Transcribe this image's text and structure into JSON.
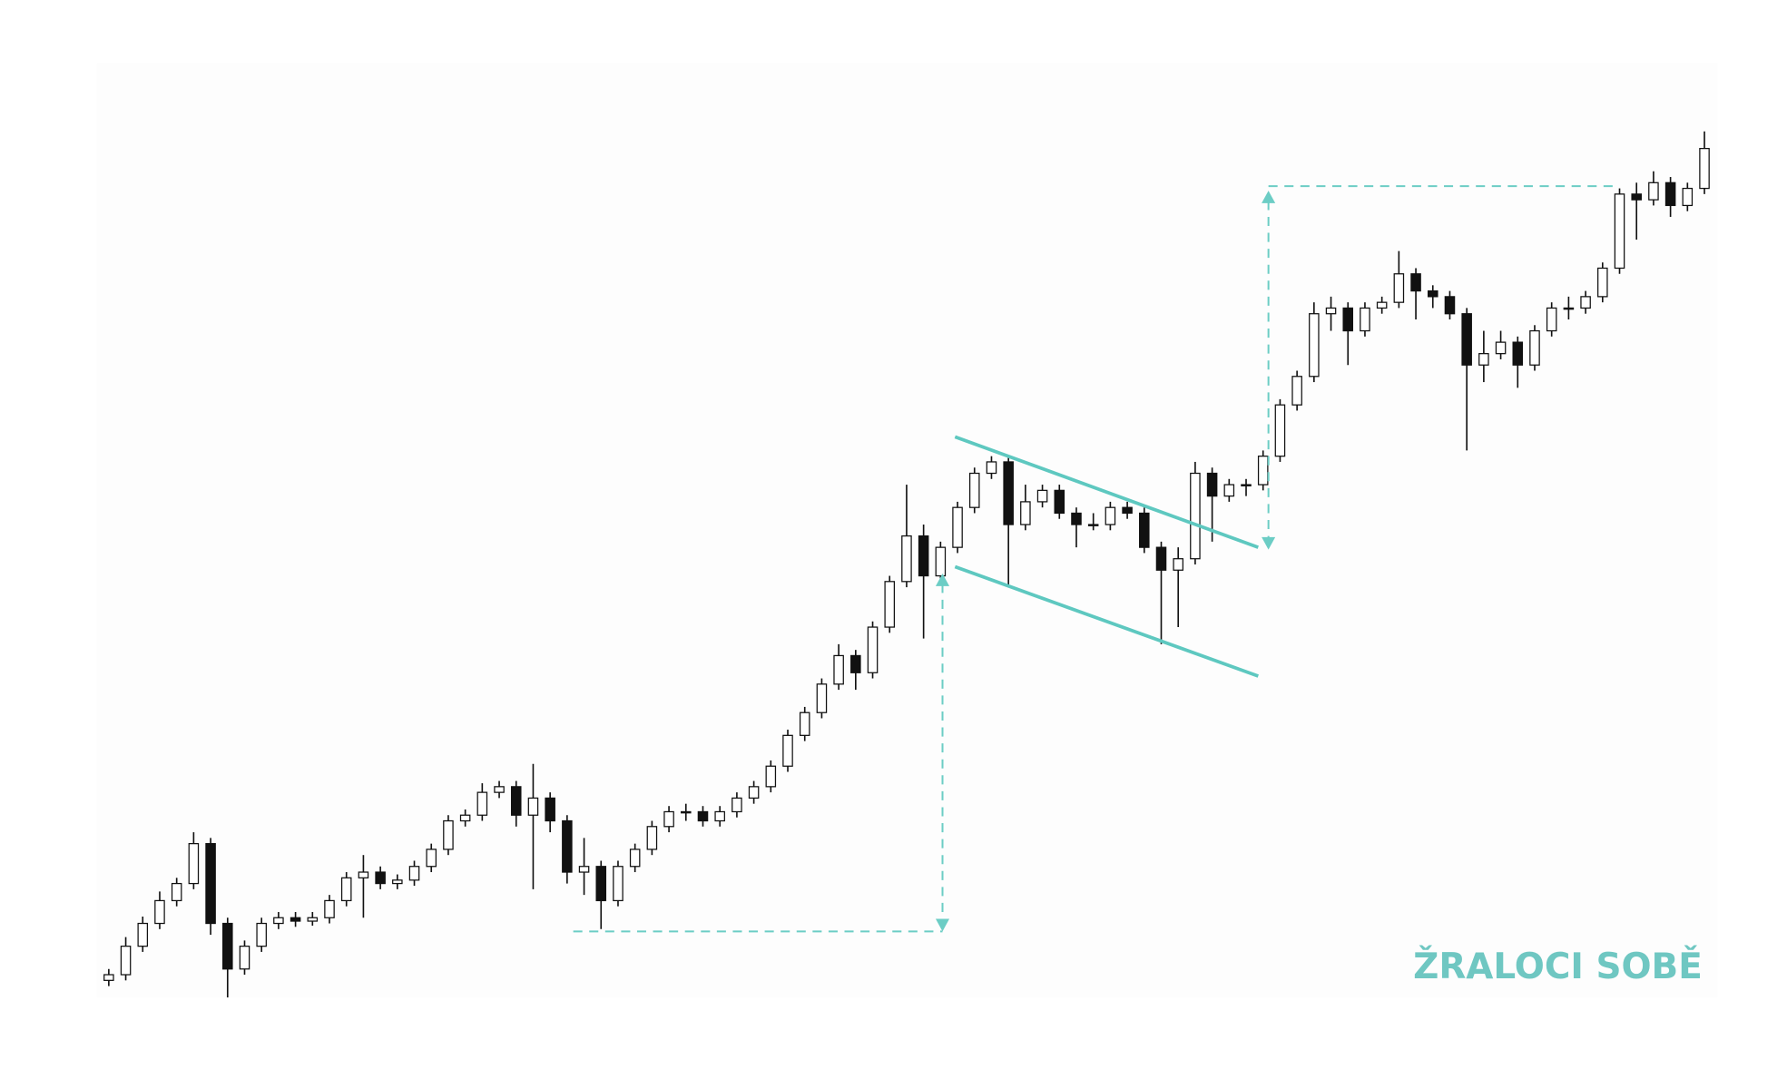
{
  "chart_data": {
    "type": "candlestick",
    "watermark": "ŽRALOCI SOBĚ",
    "ylim": [
      0,
      80
    ],
    "up_color": "#ffffff",
    "down_color": "#111111",
    "wick_color": "#111111",
    "open": [
      4,
      4.5,
      7,
      9,
      11,
      12.5,
      16,
      9,
      5,
      7,
      9,
      9.5,
      9.2,
      9.5,
      11,
      13,
      13.5,
      12.5,
      12.8,
      14,
      15.5,
      18,
      18.5,
      20.5,
      21,
      18.5,
      20,
      18,
      13.5,
      14,
      11,
      14,
      15.5,
      17.5,
      18.8,
      18.8,
      18,
      18.8,
      20,
      21,
      22.8,
      25.5,
      27.5,
      30,
      32.5,
      31,
      35,
      39,
      43,
      39.5,
      42,
      45.5,
      48.5,
      49.5,
      44,
      46,
      47,
      45,
      44,
      44,
      45.5,
      45,
      42,
      40,
      41,
      48.5,
      46.5,
      47.5,
      47.5,
      50,
      54.5,
      57,
      62.5,
      63,
      61,
      63,
      63.5,
      66,
      64.5,
      64,
      62.5,
      58,
      59,
      60,
      58,
      61,
      63,
      63,
      64,
      66.5,
      73,
      72.5,
      74,
      72,
      73.5
    ],
    "high": [
      5,
      7.8,
      9.6,
      11.8,
      13,
      17,
      16.5,
      9.5,
      7.5,
      9.5,
      10,
      10,
      10,
      11.5,
      13.5,
      15,
      14,
      13.3,
      14.5,
      16,
      18.5,
      19,
      21.3,
      21.5,
      21.5,
      23,
      20.5,
      18.5,
      16.5,
      14.5,
      14.5,
      16,
      18,
      19.3,
      19.5,
      19.3,
      19.3,
      20.5,
      21.5,
      23.3,
      26,
      28,
      30.5,
      33.5,
      33,
      35.5,
      39.5,
      47.5,
      44,
      42.5,
      46,
      49,
      50,
      50,
      47.5,
      47.5,
      47.5,
      45.5,
      45,
      46,
      46,
      45.5,
      42.5,
      42,
      49.5,
      49,
      48,
      48,
      50.5,
      55,
      57.5,
      63.5,
      64,
      63.5,
      63.5,
      64,
      68,
      66.5,
      65,
      64.5,
      63,
      61,
      61,
      60.5,
      61.5,
      63.5,
      64,
      64.5,
      67,
      73.5,
      74,
      75,
      74.5,
      74,
      78.5
    ],
    "low": [
      3.5,
      4,
      6.5,
      8.5,
      10.5,
      12,
      8,
      2.5,
      4.5,
      6.5,
      8.5,
      8.7,
      8.8,
      9,
      10.5,
      9.5,
      12,
      12,
      12.3,
      13.5,
      15,
      17.5,
      18,
      20,
      17.5,
      12,
      17,
      12.5,
      11.5,
      8.5,
      10.5,
      13.5,
      15,
      17,
      18,
      17.5,
      17.5,
      18.3,
      19.5,
      20.5,
      22.3,
      25,
      27,
      29.5,
      29.5,
      30.5,
      34.5,
      38.5,
      34,
      39,
      41.5,
      45,
      48,
      38.5,
      43.5,
      45.5,
      44.5,
      42,
      43.5,
      43.5,
      44.5,
      41.5,
      33.5,
      35,
      40.5,
      42.5,
      46,
      46.5,
      47,
      49.5,
      54,
      56.5,
      61,
      58,
      60.5,
      62.5,
      63,
      62,
      63,
      62,
      50.5,
      56.5,
      58.5,
      56,
      57.5,
      60.5,
      62,
      62.5,
      63.5,
      66,
      69,
      72,
      71,
      71.5,
      73
    ],
    "close": [
      4.5,
      7,
      9,
      11,
      12.5,
      16,
      9,
      5,
      7,
      9,
      9.5,
      9.2,
      9.5,
      11,
      13,
      13.5,
      12.5,
      12.8,
      14,
      15.5,
      18,
      18.5,
      20.5,
      21,
      18.5,
      20,
      18,
      13.5,
      14,
      11,
      14,
      15.5,
      17.5,
      18.8,
      18.8,
      18,
      18.8,
      20,
      21,
      22.8,
      25.5,
      27.5,
      30,
      32.5,
      31,
      35,
      39,
      43,
      39.5,
      42,
      45.5,
      48.5,
      49.5,
      44,
      46,
      47,
      45,
      44,
      44,
      45.5,
      45,
      42,
      40,
      41,
      48.5,
      46.5,
      47.5,
      47.5,
      50,
      54.5,
      57,
      62.5,
      63,
      61,
      63,
      63.5,
      66,
      64.5,
      64,
      62.5,
      58,
      59,
      60,
      58,
      61,
      63,
      63,
      64,
      66.5,
      73,
      72.5,
      74,
      72,
      73.5,
      77
    ]
  }
}
